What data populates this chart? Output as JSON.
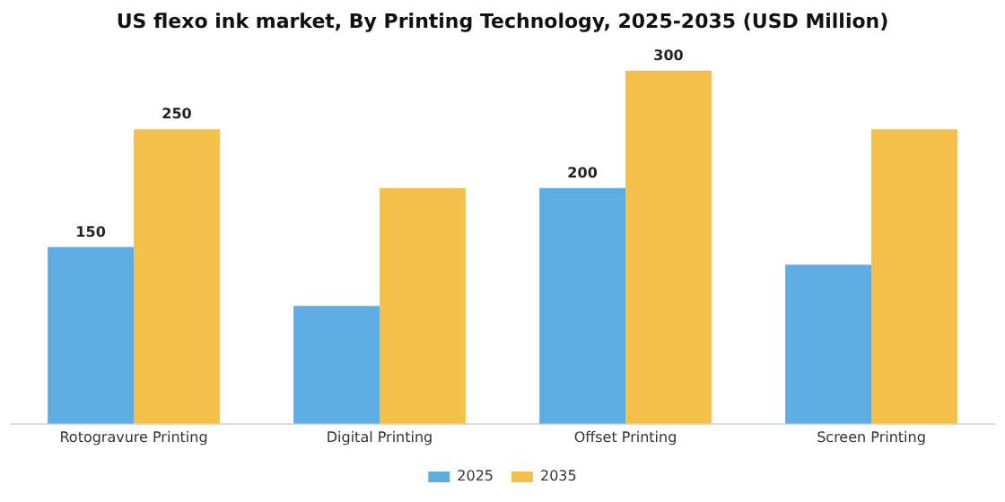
{
  "chart_data": {
    "type": "bar",
    "title": "US flexo ink market, By Printing Technology, 2025-2035 (USD Million)",
    "categories": [
      "Rotogravure Printing",
      "Digital Printing",
      "Offset Printing",
      "Screen Printing"
    ],
    "series": [
      {
        "name": "2025",
        "color": "#5dade2",
        "values": [
          150,
          100,
          200,
          135
        ],
        "value_labels": [
          "150",
          null,
          "200",
          null
        ]
      },
      {
        "name": "2035",
        "color": "#f5c04a",
        "values": [
          250,
          200,
          300,
          250
        ],
        "value_labels": [
          "250",
          null,
          "300",
          null
        ]
      }
    ],
    "grid": false,
    "legend": "bottom"
  }
}
